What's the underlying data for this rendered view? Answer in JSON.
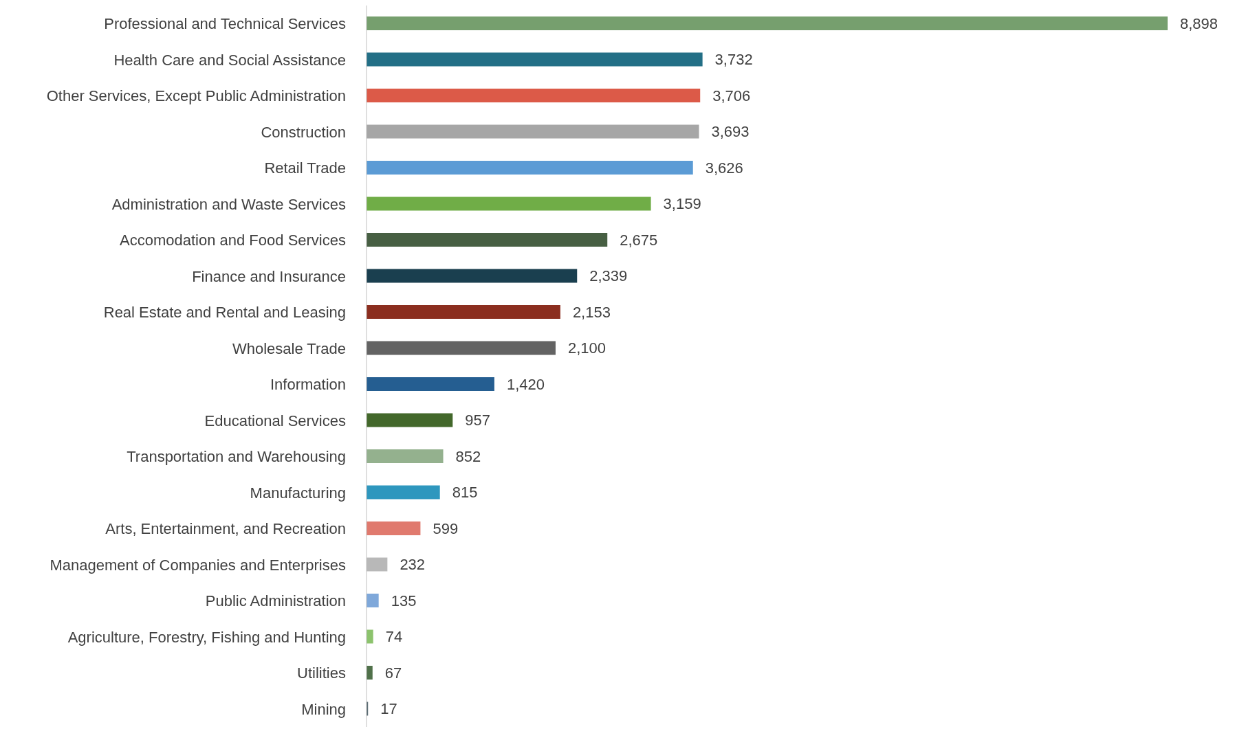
{
  "chart_data": {
    "type": "bar",
    "orientation": "horizontal",
    "categories": [
      "Professional and Technical Services",
      "Health Care and Social Assistance",
      "Other Services, Except Public Administration",
      "Construction",
      "Retail Trade",
      "Administration and Waste Services",
      "Accomodation and Food Services",
      "Finance and Insurance",
      "Real Estate and Rental and Leasing",
      "Wholesale Trade",
      "Information",
      "Educational Services",
      "Transportation and Warehousing",
      "Manufacturing",
      "Arts, Entertainment, and Recreation",
      "Management of Companies and Enterprises",
      "Public Administration",
      "Agriculture, Forestry, Fishing and Hunting",
      "Utilities",
      "Mining"
    ],
    "values": [
      8898,
      3732,
      3706,
      3693,
      3626,
      3159,
      2675,
      2339,
      2153,
      2100,
      1420,
      957,
      852,
      815,
      599,
      232,
      135,
      74,
      67,
      17
    ],
    "value_labels": [
      "8,898",
      "3,732",
      "3,706",
      "3,693",
      "3,626",
      "3,159",
      "2,675",
      "2,339",
      "2,153",
      "2,100",
      "1,420",
      "957",
      "852",
      "815",
      "599",
      "232",
      "135",
      "74",
      "67",
      "17"
    ],
    "colors": [
      "#769f6e",
      "#236f86",
      "#dc5a48",
      "#a6a6a6",
      "#5b9bd5",
      "#70ad47",
      "#475f43",
      "#1a3f4f",
      "#8b2e1f",
      "#636363",
      "#255e91",
      "#43682b",
      "#94b18e",
      "#2e97be",
      "#e07a6e",
      "#b8b8b8",
      "#7fa8da",
      "#8cc36d",
      "#50714a",
      "#5a6b73"
    ]
  }
}
